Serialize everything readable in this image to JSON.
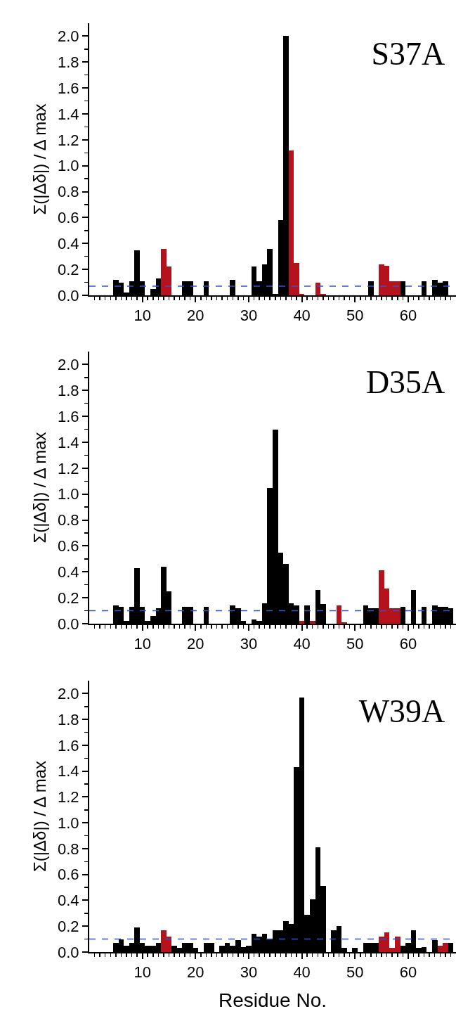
{
  "chart_data": [
    {
      "type": "bar",
      "title": "S37A",
      "ylabel": "Σ(|Δδ|) / Δ max",
      "x": [
        5,
        6,
        7,
        8,
        9,
        10,
        12,
        13,
        14,
        15,
        18,
        19,
        22,
        27,
        31,
        32,
        33,
        34,
        35,
        36,
        37,
        38,
        39,
        40,
        43,
        44,
        53,
        55,
        56,
        57,
        58,
        59,
        63,
        65,
        66,
        67
      ],
      "values": [
        0.12,
        0.1,
        0.02,
        0.11,
        0.35,
        0.11,
        0.05,
        0.13,
        0.36,
        0.22,
        0.11,
        0.11,
        0.11,
        0.12,
        0.22,
        0.11,
        0.24,
        0.36,
        0.01,
        0.58,
        2.0,
        1.12,
        0.25,
        0.01,
        0.1,
        0.01,
        0.11,
        0.24,
        0.23,
        0.11,
        0.11,
        0.11,
        0.11,
        0.12,
        0.1,
        0.11
      ],
      "colors": [
        "#000000",
        "#000000",
        "#000000",
        "#000000",
        "#000000",
        "#000000",
        "#000000",
        "#000000",
        "#b5121b",
        "#b5121b",
        "#000000",
        "#000000",
        "#000000",
        "#000000",
        "#000000",
        "#000000",
        "#000000",
        "#000000",
        "#000000",
        "#000000",
        "#000000",
        "#b5121b",
        "#b5121b",
        "#b5121b",
        "#b5121b",
        "#b5121b",
        "#000000",
        "#b5121b",
        "#b5121b",
        "#b5121b",
        "#b5121b",
        "#000000",
        "#000000",
        "#000000",
        "#000000",
        "#000000"
      ],
      "ref_lines": [
        {
          "axis": "y",
          "value": 0.07,
          "color": "#3355cc",
          "line_style": "dashed"
        }
      ],
      "xlim": [
        0,
        69
      ],
      "xticks": [
        {
          "value": 1,
          "label": null
        },
        {
          "value": 2,
          "label": null
        },
        {
          "value": 3,
          "label": null
        },
        {
          "value": 4,
          "label": null
        },
        {
          "value": 5,
          "label": null
        },
        {
          "value": 6,
          "label": null
        },
        {
          "value": 7,
          "label": null
        },
        {
          "value": 8,
          "label": null
        },
        {
          "value": 9,
          "label": null
        },
        10,
        {
          "value": 11,
          "label": null
        },
        {
          "value": 12,
          "label": null
        },
        {
          "value": 13,
          "label": null
        },
        {
          "value": 14,
          "label": null
        },
        {
          "value": 15,
          "label": null
        },
        {
          "value": 16,
          "label": null
        },
        {
          "value": 17,
          "label": null
        },
        {
          "value": 18,
          "label": null
        },
        {
          "value": 19,
          "label": null
        },
        20,
        {
          "value": 21,
          "label": null
        },
        {
          "value": 22,
          "label": null
        },
        {
          "value": 23,
          "label": null
        },
        {
          "value": 24,
          "label": null
        },
        {
          "value": 25,
          "label": null
        },
        {
          "value": 26,
          "label": null
        },
        {
          "value": 27,
          "label": null
        },
        {
          "value": 28,
          "label": null
        },
        {
          "value": 29,
          "label": null
        },
        30,
        {
          "value": 31,
          "label": null
        },
        {
          "value": 32,
          "label": null
        },
        {
          "value": 33,
          "label": null
        },
        {
          "value": 34,
          "label": null
        },
        {
          "value": 35,
          "label": null
        },
        {
          "value": 36,
          "label": null
        },
        {
          "value": 37,
          "label": null
        },
        {
          "value": 38,
          "label": null
        },
        {
          "value": 39,
          "label": null
        },
        40,
        {
          "value": 41,
          "label": null
        },
        {
          "value": 42,
          "label": null
        },
        {
          "value": 43,
          "label": null
        },
        {
          "value": 44,
          "label": null
        },
        {
          "value": 45,
          "label": null
        },
        {
          "value": 46,
          "label": null
        },
        {
          "value": 47,
          "label": null
        },
        {
          "value": 48,
          "label": null
        },
        {
          "value": 49,
          "label": null
        },
        50,
        {
          "value": 51,
          "label": null
        },
        {
          "value": 52,
          "label": null
        },
        {
          "value": 53,
          "label": null
        },
        {
          "value": 54,
          "label": null
        },
        {
          "value": 55,
          "label": null
        },
        {
          "value": 56,
          "label": null
        },
        {
          "value": 57,
          "label": null
        },
        {
          "value": 58,
          "label": null
        },
        {
          "value": 59,
          "label": null
        },
        60,
        {
          "value": 61,
          "label": null
        },
        {
          "value": 62,
          "label": null
        },
        {
          "value": 63,
          "label": null
        },
        {
          "value": 64,
          "label": null
        },
        {
          "value": 65,
          "label": null
        },
        {
          "value": 66,
          "label": null
        },
        {
          "value": 67,
          "label": null
        },
        {
          "value": 68,
          "label": null
        }
      ],
      "ylim": [
        0,
        2.1
      ],
      "yticks": [
        {
          "value": 0,
          "label": "0.0"
        },
        {
          "value": 0.1,
          "label": null
        },
        0.2,
        {
          "value": 0.3,
          "label": null
        },
        0.4,
        {
          "value": 0.5,
          "label": null
        },
        0.6,
        {
          "value": 0.7,
          "label": null
        },
        0.8,
        {
          "value": 0.9,
          "label": null
        },
        {
          "value": 1,
          "label": "1.0"
        },
        {
          "value": 1.1,
          "label": null
        },
        1.2,
        {
          "value": 1.3,
          "label": null
        },
        1.4,
        {
          "value": 1.5,
          "label": null
        },
        1.6,
        {
          "value": 1.7,
          "label": null
        },
        1.8,
        {
          "value": 1.9,
          "label": null
        },
        {
          "value": 2,
          "label": "2.0"
        }
      ]
    },
    {
      "type": "bar",
      "title": "D35A",
      "ylabel": "Σ(|Δδ|) / Δ max",
      "x": [
        5,
        6,
        7,
        8,
        9,
        10,
        11,
        12,
        13,
        14,
        15,
        18,
        19,
        22,
        27,
        28,
        29,
        31,
        32,
        33,
        34,
        35,
        36,
        37,
        38,
        39,
        40,
        41,
        42,
        43,
        44,
        47,
        48,
        52,
        53,
        54,
        55,
        56,
        57,
        58,
        59,
        61,
        63,
        65,
        66,
        67,
        68
      ],
      "values": [
        0.14,
        0.13,
        0.02,
        0.13,
        0.43,
        0.13,
        0.02,
        0.06,
        0.12,
        0.44,
        0.25,
        0.13,
        0.13,
        0.13,
        0.14,
        0.12,
        0.02,
        0.03,
        0.02,
        0.16,
        1.05,
        1.5,
        0.55,
        0.46,
        0.16,
        0.14,
        0.02,
        0.14,
        0.02,
        0.26,
        0.15,
        0.14,
        0.01,
        0.14,
        0.12,
        0.12,
        0.41,
        0.27,
        0.12,
        0.12,
        0.13,
        0.26,
        0.13,
        0.14,
        0.13,
        0.13,
        0.12
      ],
      "colors": [
        "#000000",
        "#000000",
        "#000000",
        "#000000",
        "#000000",
        "#000000",
        "#000000",
        "#000000",
        "#000000",
        "#000000",
        "#000000",
        "#000000",
        "#000000",
        "#000000",
        "#000000",
        "#000000",
        "#000000",
        "#000000",
        "#000000",
        "#000000",
        "#000000",
        "#000000",
        "#000000",
        "#000000",
        "#000000",
        "#000000",
        "#b5121b",
        "#000000",
        "#b5121b",
        "#000000",
        "#000000",
        "#b5121b",
        "#b5121b",
        "#000000",
        "#000000",
        "#000000",
        "#b5121b",
        "#b5121b",
        "#b5121b",
        "#b5121b",
        "#000000",
        "#000000",
        "#000000",
        "#000000",
        "#000000",
        "#000000",
        "#000000"
      ],
      "ref_lines": [
        {
          "axis": "y",
          "value": 0.1,
          "color": "#3355cc",
          "line_style": "dashed"
        }
      ],
      "xlim": [
        0,
        69
      ],
      "xticks": [
        {
          "value": 1,
          "label": null
        },
        {
          "value": 2,
          "label": null
        },
        {
          "value": 3,
          "label": null
        },
        {
          "value": 4,
          "label": null
        },
        {
          "value": 5,
          "label": null
        },
        {
          "value": 6,
          "label": null
        },
        {
          "value": 7,
          "label": null
        },
        {
          "value": 8,
          "label": null
        },
        {
          "value": 9,
          "label": null
        },
        10,
        {
          "value": 11,
          "label": null
        },
        {
          "value": 12,
          "label": null
        },
        {
          "value": 13,
          "label": null
        },
        {
          "value": 14,
          "label": null
        },
        {
          "value": 15,
          "label": null
        },
        {
          "value": 16,
          "label": null
        },
        {
          "value": 17,
          "label": null
        },
        {
          "value": 18,
          "label": null
        },
        {
          "value": 19,
          "label": null
        },
        20,
        {
          "value": 21,
          "label": null
        },
        {
          "value": 22,
          "label": null
        },
        {
          "value": 23,
          "label": null
        },
        {
          "value": 24,
          "label": null
        },
        {
          "value": 25,
          "label": null
        },
        {
          "value": 26,
          "label": null
        },
        {
          "value": 27,
          "label": null
        },
        {
          "value": 28,
          "label": null
        },
        {
          "value": 29,
          "label": null
        },
        30,
        {
          "value": 31,
          "label": null
        },
        {
          "value": 32,
          "label": null
        },
        {
          "value": 33,
          "label": null
        },
        {
          "value": 34,
          "label": null
        },
        {
          "value": 35,
          "label": null
        },
        {
          "value": 36,
          "label": null
        },
        {
          "value": 37,
          "label": null
        },
        {
          "value": 38,
          "label": null
        },
        {
          "value": 39,
          "label": null
        },
        40,
        {
          "value": 41,
          "label": null
        },
        {
          "value": 42,
          "label": null
        },
        {
          "value": 43,
          "label": null
        },
        {
          "value": 44,
          "label": null
        },
        {
          "value": 45,
          "label": null
        },
        {
          "value": 46,
          "label": null
        },
        {
          "value": 47,
          "label": null
        },
        {
          "value": 48,
          "label": null
        },
        {
          "value": 49,
          "label": null
        },
        50,
        {
          "value": 51,
          "label": null
        },
        {
          "value": 52,
          "label": null
        },
        {
          "value": 53,
          "label": null
        },
        {
          "value": 54,
          "label": null
        },
        {
          "value": 55,
          "label": null
        },
        {
          "value": 56,
          "label": null
        },
        {
          "value": 57,
          "label": null
        },
        {
          "value": 58,
          "label": null
        },
        {
          "value": 59,
          "label": null
        },
        60,
        {
          "value": 61,
          "label": null
        },
        {
          "value": 62,
          "label": null
        },
        {
          "value": 63,
          "label": null
        },
        {
          "value": 64,
          "label": null
        },
        {
          "value": 65,
          "label": null
        },
        {
          "value": 66,
          "label": null
        },
        {
          "value": 67,
          "label": null
        },
        {
          "value": 68,
          "label": null
        }
      ],
      "ylim": [
        0,
        2.1
      ],
      "yticks": [
        {
          "value": 0,
          "label": "0.0"
        },
        {
          "value": 0.1,
          "label": null
        },
        0.2,
        {
          "value": 0.3,
          "label": null
        },
        0.4,
        {
          "value": 0.5,
          "label": null
        },
        0.6,
        {
          "value": 0.7,
          "label": null
        },
        0.8,
        {
          "value": 0.9,
          "label": null
        },
        {
          "value": 1,
          "label": "1.0"
        },
        {
          "value": 1.1,
          "label": null
        },
        1.2,
        {
          "value": 1.3,
          "label": null
        },
        1.4,
        {
          "value": 1.5,
          "label": null
        },
        1.6,
        {
          "value": 1.7,
          "label": null
        },
        1.8,
        {
          "value": 1.9,
          "label": null
        },
        {
          "value": 2,
          "label": "2.0"
        }
      ]
    },
    {
      "type": "bar",
      "title": "W39A",
      "ylabel": "Σ(|Δδ|) / Δ max",
      "xlabel": "Residue No.",
      "x": [
        5,
        6,
        7,
        8,
        9,
        10,
        11,
        12,
        13,
        14,
        15,
        16,
        17,
        18,
        19,
        20,
        22,
        23,
        25,
        26,
        27,
        28,
        29,
        30,
        31,
        32,
        33,
        34,
        35,
        36,
        37,
        38,
        39,
        40,
        41,
        42,
        43,
        44,
        46,
        47,
        48,
        50,
        52,
        53,
        54,
        55,
        56,
        57,
        58,
        59,
        60,
        61,
        62,
        63,
        65,
        66,
        67,
        68
      ],
      "values": [
        0.07,
        0.1,
        0.05,
        0.07,
        0.19,
        0.07,
        0.05,
        0.05,
        0.07,
        0.17,
        0.12,
        0.05,
        0.03,
        0.07,
        0.07,
        0.03,
        0.07,
        0.07,
        0.05,
        0.07,
        0.05,
        0.09,
        0.04,
        0.05,
        0.14,
        0.12,
        0.14,
        0.1,
        0.17,
        0.17,
        0.24,
        0.22,
        1.43,
        1.97,
        0.29,
        0.41,
        0.81,
        0.51,
        0.17,
        0.2,
        0.03,
        0.03,
        0.07,
        0.07,
        0.07,
        0.12,
        0.15,
        0.03,
        0.12,
        0.05,
        0.07,
        0.17,
        0.03,
        0.04,
        0.09,
        0.05,
        0.07,
        0.07
      ],
      "colors": [
        "#000000",
        "#000000",
        "#000000",
        "#000000",
        "#000000",
        "#000000",
        "#000000",
        "#000000",
        "#000000",
        "#b5121b",
        "#b5121b",
        "#000000",
        "#000000",
        "#000000",
        "#000000",
        "#000000",
        "#000000",
        "#000000",
        "#000000",
        "#000000",
        "#000000",
        "#000000",
        "#000000",
        "#000000",
        "#000000",
        "#000000",
        "#000000",
        "#000000",
        "#000000",
        "#000000",
        "#000000",
        "#000000",
        "#000000",
        "#000000",
        "#000000",
        "#000000",
        "#000000",
        "#000000",
        "#000000",
        "#000000",
        "#000000",
        "#000000",
        "#000000",
        "#000000",
        "#000000",
        "#b5121b",
        "#b5121b",
        "#b5121b",
        "#b5121b",
        "#000000",
        "#000000",
        "#000000",
        "#000000",
        "#000000",
        "#000000",
        "#b5121b",
        "#b5121b",
        "#000000"
      ],
      "ref_lines": [
        {
          "axis": "y",
          "value": 0.1,
          "color": "#3355cc",
          "line_style": "dashed"
        }
      ],
      "xlim": [
        0,
        69
      ],
      "xticks": [
        {
          "value": 1,
          "label": null
        },
        {
          "value": 2,
          "label": null
        },
        {
          "value": 3,
          "label": null
        },
        {
          "value": 4,
          "label": null
        },
        {
          "value": 5,
          "label": null
        },
        {
          "value": 6,
          "label": null
        },
        {
          "value": 7,
          "label": null
        },
        {
          "value": 8,
          "label": null
        },
        {
          "value": 9,
          "label": null
        },
        10,
        {
          "value": 11,
          "label": null
        },
        {
          "value": 12,
          "label": null
        },
        {
          "value": 13,
          "label": null
        },
        {
          "value": 14,
          "label": null
        },
        {
          "value": 15,
          "label": null
        },
        {
          "value": 16,
          "label": null
        },
        {
          "value": 17,
          "label": null
        },
        {
          "value": 18,
          "label": null
        },
        {
          "value": 19,
          "label": null
        },
        20,
        {
          "value": 21,
          "label": null
        },
        {
          "value": 22,
          "label": null
        },
        {
          "value": 23,
          "label": null
        },
        {
          "value": 24,
          "label": null
        },
        {
          "value": 25,
          "label": null
        },
        {
          "value": 26,
          "label": null
        },
        {
          "value": 27,
          "label": null
        },
        {
          "value": 28,
          "label": null
        },
        {
          "value": 29,
          "label": null
        },
        30,
        {
          "value": 31,
          "label": null
        },
        {
          "value": 32,
          "label": null
        },
        {
          "value": 33,
          "label": null
        },
        {
          "value": 34,
          "label": null
        },
        {
          "value": 35,
          "label": null
        },
        {
          "value": 36,
          "label": null
        },
        {
          "value": 37,
          "label": null
        },
        {
          "value": 38,
          "label": null
        },
        {
          "value": 39,
          "label": null
        },
        40,
        {
          "value": 41,
          "label": null
        },
        {
          "value": 42,
          "label": null
        },
        {
          "value": 43,
          "label": null
        },
        {
          "value": 44,
          "label": null
        },
        {
          "value": 45,
          "label": null
        },
        {
          "value": 46,
          "label": null
        },
        {
          "value": 47,
          "label": null
        },
        {
          "value": 48,
          "label": null
        },
        {
          "value": 49,
          "label": null
        },
        50,
        {
          "value": 51,
          "label": null
        },
        {
          "value": 52,
          "label": null
        },
        {
          "value": 53,
          "label": null
        },
        {
          "value": 54,
          "label": null
        },
        {
          "value": 55,
          "label": null
        },
        {
          "value": 56,
          "label": null
        },
        {
          "value": 57,
          "label": null
        },
        {
          "value": 58,
          "label": null
        },
        {
          "value": 59,
          "label": null
        },
        60,
        {
          "value": 61,
          "label": null
        },
        {
          "value": 62,
          "label": null
        },
        {
          "value": 63,
          "label": null
        },
        {
          "value": 64,
          "label": null
        },
        {
          "value": 65,
          "label": null
        },
        {
          "value": 66,
          "label": null
        },
        {
          "value": 67,
          "label": null
        },
        {
          "value": 68,
          "label": null
        }
      ],
      "ylim": [
        0,
        2.1
      ],
      "yticks": [
        {
          "value": 0,
          "label": "0.0"
        },
        {
          "value": 0.1,
          "label": null
        },
        0.2,
        {
          "value": 0.3,
          "label": null
        },
        0.4,
        {
          "value": 0.5,
          "label": null
        },
        0.6,
        {
          "value": 0.7,
          "label": null
        },
        0.8,
        {
          "value": 0.9,
          "label": null
        },
        {
          "value": 1,
          "label": "1.0"
        },
        {
          "value": 1.1,
          "label": null
        },
        1.2,
        {
          "value": 1.3,
          "label": null
        },
        1.4,
        {
          "value": 1.5,
          "label": null
        },
        1.6,
        {
          "value": 1.7,
          "label": null
        },
        1.8,
        {
          "value": 1.9,
          "label": null
        },
        {
          "value": 2,
          "label": "2.0"
        }
      ]
    }
  ]
}
